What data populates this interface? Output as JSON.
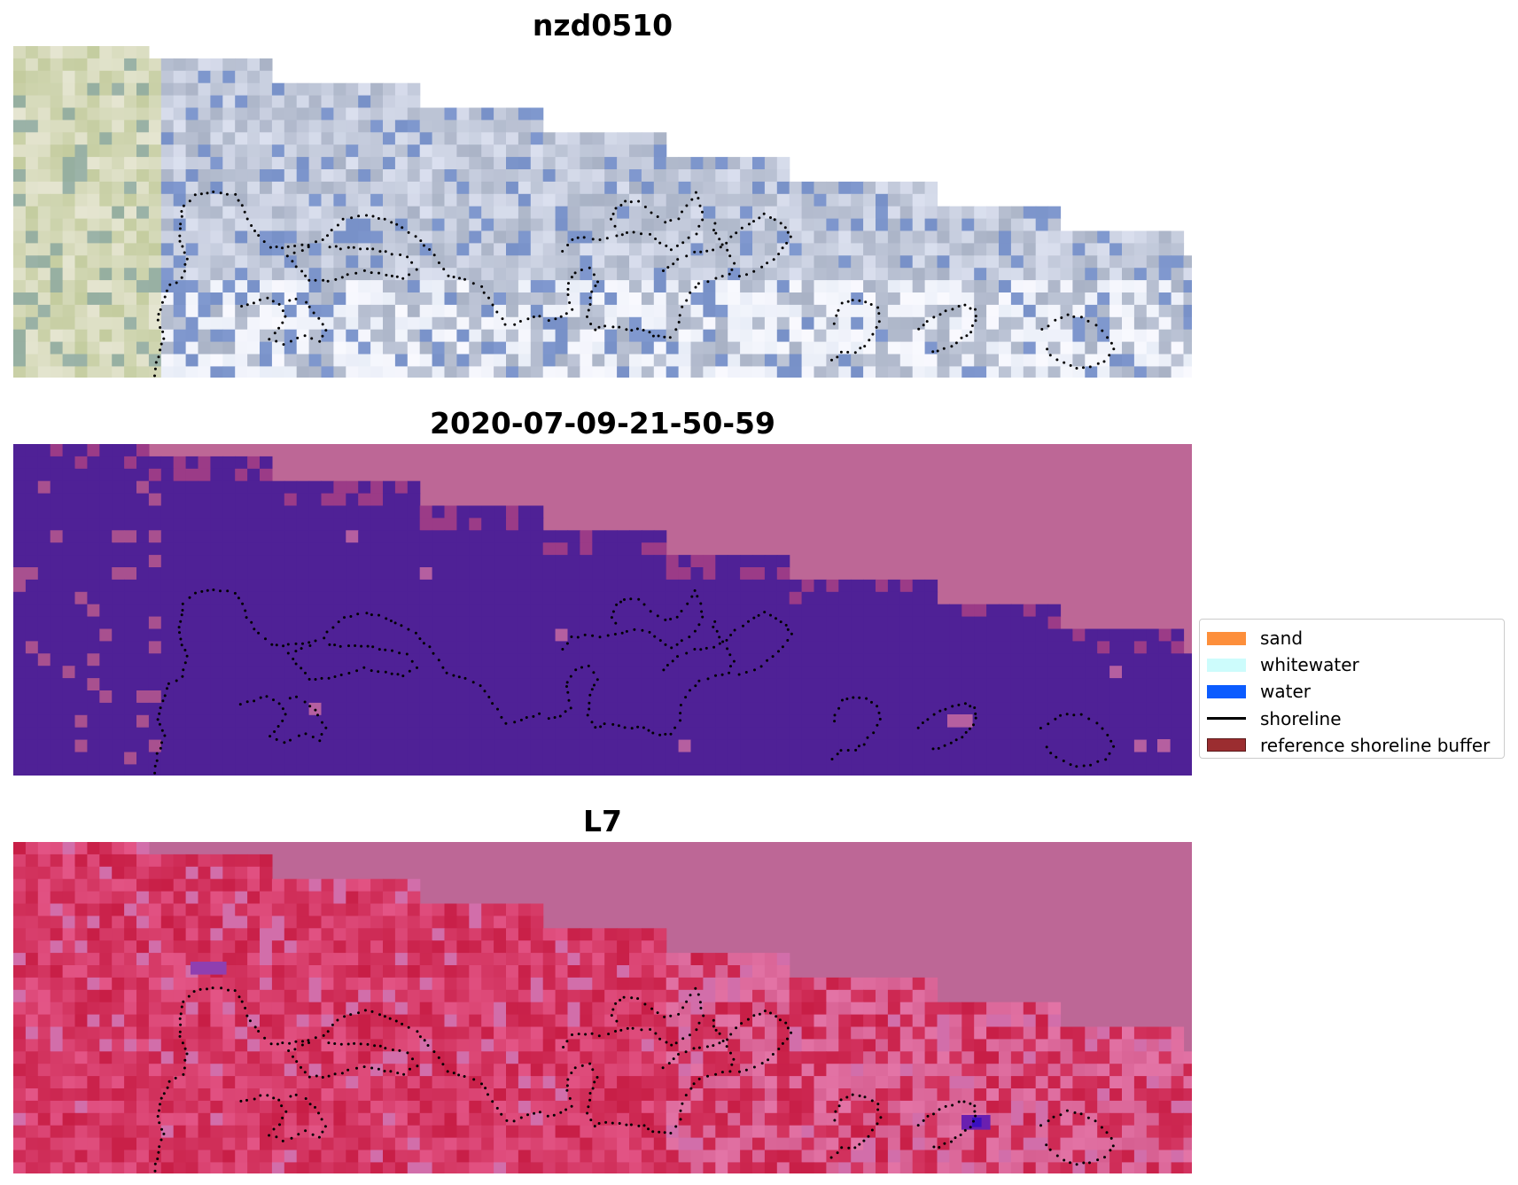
{
  "panels": [
    {
      "title": "nzd0510"
    },
    {
      "title": "2020-07-09-21-50-59"
    },
    {
      "title": "L7"
    }
  ],
  "colors": {
    "background_pink": "#bd6796",
    "class_purple": "#4f2196",
    "dots": "#000000"
  },
  "legend": {
    "items": [
      {
        "label": "sand",
        "color": "#fd8f3b",
        "kind": "patch"
      },
      {
        "label": "whitewater",
        "color": "#cdfcfc",
        "kind": "patch"
      },
      {
        "label": "water",
        "color": "#0b5cff",
        "kind": "patch"
      },
      {
        "label": "shoreline",
        "color": "#000000",
        "kind": "line"
      },
      {
        "label": "reference shoreline buffer",
        "color": "#9b2d30",
        "kind": "patch"
      }
    ]
  }
}
